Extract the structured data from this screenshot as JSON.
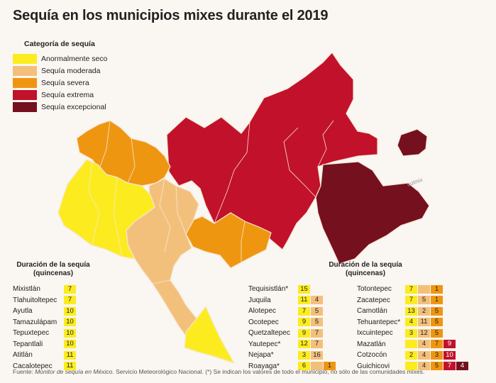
{
  "title": "Sequía en los municipios mixes durante el 2019",
  "colors": {
    "anormal": "#fcec1f",
    "moderada": "#f3c07c",
    "severa": "#ef9611",
    "extrema": "#c2112b",
    "excepcional": "#75101f",
    "stroke": "#f6e7d4"
  },
  "legend": {
    "title": "Categoría de sequía",
    "items": [
      {
        "label": "Anormalmente seco",
        "color": "#fcec1f"
      },
      {
        "label": "Sequía moderada",
        "color": "#f3c07c"
      },
      {
        "label": "Sequía severa",
        "color": "#ef9611"
      },
      {
        "label": "Sequía extrema",
        "color": "#c2112b"
      },
      {
        "label": "Sequía excepcional",
        "color": "#75101f"
      }
    ]
  },
  "map_label": "colmix",
  "duration_title": "Duración de la sequía\n(quincenas)",
  "tables": {
    "left": [
      {
        "name": "Mixistlán",
        "cells": [
          {
            "v": "7",
            "c": "anormal"
          }
        ]
      },
      {
        "name": "Tlahuitoltepec",
        "cells": [
          {
            "v": "7",
            "c": "anormal"
          }
        ]
      },
      {
        "name": "Ayutla",
        "cells": [
          {
            "v": "10",
            "c": "anormal"
          }
        ]
      },
      {
        "name": "Tamazulápam",
        "cells": [
          {
            "v": "10",
            "c": "anormal"
          }
        ]
      },
      {
        "name": "Tepuxtepec",
        "cells": [
          {
            "v": "10",
            "c": "anormal"
          }
        ]
      },
      {
        "name": "Tepantlali",
        "cells": [
          {
            "v": "10",
            "c": "anormal"
          }
        ]
      },
      {
        "name": "Atitlán",
        "cells": [
          {
            "v": "11",
            "c": "anormal"
          }
        ]
      },
      {
        "name": "Cacalotepec",
        "cells": [
          {
            "v": "11",
            "c": "anormal"
          }
        ]
      }
    ],
    "middle": [
      {
        "name": "Tequisistlán*",
        "cells": [
          {
            "v": "15",
            "c": "anormal"
          }
        ]
      },
      {
        "name": "Juquila",
        "cells": [
          {
            "v": "11",
            "c": "anormal"
          },
          {
            "v": "4",
            "c": "moderada"
          }
        ]
      },
      {
        "name": "Alotepec",
        "cells": [
          {
            "v": "7",
            "c": "anormal"
          },
          {
            "v": "5",
            "c": "moderada"
          }
        ]
      },
      {
        "name": "Ocotepec",
        "cells": [
          {
            "v": "9",
            "c": "anormal"
          },
          {
            "v": "5",
            "c": "moderada"
          }
        ]
      },
      {
        "name": "Quetzaltepec",
        "cells": [
          {
            "v": "9",
            "c": "anormal"
          },
          {
            "v": "7",
            "c": "moderada"
          }
        ]
      },
      {
        "name": "Yautepec*",
        "cells": [
          {
            "v": "12",
            "c": "anormal"
          },
          {
            "v": "7",
            "c": "moderada"
          }
        ]
      },
      {
        "name": "Nejapa*",
        "cells": [
          {
            "v": "3",
            "c": "anormal"
          },
          {
            "v": "16",
            "c": "moderada"
          }
        ]
      },
      {
        "name": "Roayaga*",
        "cells": [
          {
            "v": "6",
            "c": "anormal"
          },
          {
            "v": "",
            "c": "moderada"
          },
          {
            "v": "1",
            "c": "severa"
          }
        ]
      }
    ],
    "right": [
      {
        "name": "Totontepec",
        "cells": [
          {
            "v": "7",
            "c": "anormal"
          },
          {
            "v": "",
            "c": "moderada"
          },
          {
            "v": "1",
            "c": "severa"
          }
        ]
      },
      {
        "name": "Zacatepec",
        "cells": [
          {
            "v": "7",
            "c": "anormal"
          },
          {
            "v": "5",
            "c": "moderada"
          },
          {
            "v": "1",
            "c": "severa"
          }
        ]
      },
      {
        "name": "Camotlán",
        "cells": [
          {
            "v": "13",
            "c": "anormal"
          },
          {
            "v": "2",
            "c": "moderada"
          },
          {
            "v": "5",
            "c": "severa"
          }
        ]
      },
      {
        "name": "Tehuantepec*",
        "cells": [
          {
            "v": "4",
            "c": "anormal"
          },
          {
            "v": "11",
            "c": "moderada"
          },
          {
            "v": "5",
            "c": "severa"
          }
        ]
      },
      {
        "name": "Ixcuintepec",
        "cells": [
          {
            "v": "3",
            "c": "anormal"
          },
          {
            "v": "12",
            "c": "moderada"
          },
          {
            "v": "5",
            "c": "severa"
          }
        ]
      },
      {
        "name": "Mazatlán",
        "cells": [
          {
            "v": "",
            "c": "anormal"
          },
          {
            "v": "4",
            "c": "moderada"
          },
          {
            "v": "7",
            "c": "severa"
          },
          {
            "v": "9",
            "c": "extrema"
          }
        ]
      },
      {
        "name": "Cotzocón",
        "cells": [
          {
            "v": "2",
            "c": "anormal"
          },
          {
            "v": "4",
            "c": "moderada"
          },
          {
            "v": "3",
            "c": "severa"
          },
          {
            "v": "10",
            "c": "extrema"
          }
        ]
      },
      {
        "name": "Guichicovi",
        "cells": [
          {
            "v": "",
            "c": "anormal"
          },
          {
            "v": "4",
            "c": "moderada"
          },
          {
            "v": "5",
            "c": "severa"
          },
          {
            "v": "7",
            "c": "extrema"
          },
          {
            "v": "4",
            "c": "excepcional"
          }
        ]
      }
    ]
  },
  "footer": {
    "prefix": "Fuente: ",
    "source": "Monitor de sequía en México",
    "rest": ". Servicio Meteorológico Nacional. (*) Se indican los valores de todo el municipio, no sólo de las comunidades mixes."
  }
}
